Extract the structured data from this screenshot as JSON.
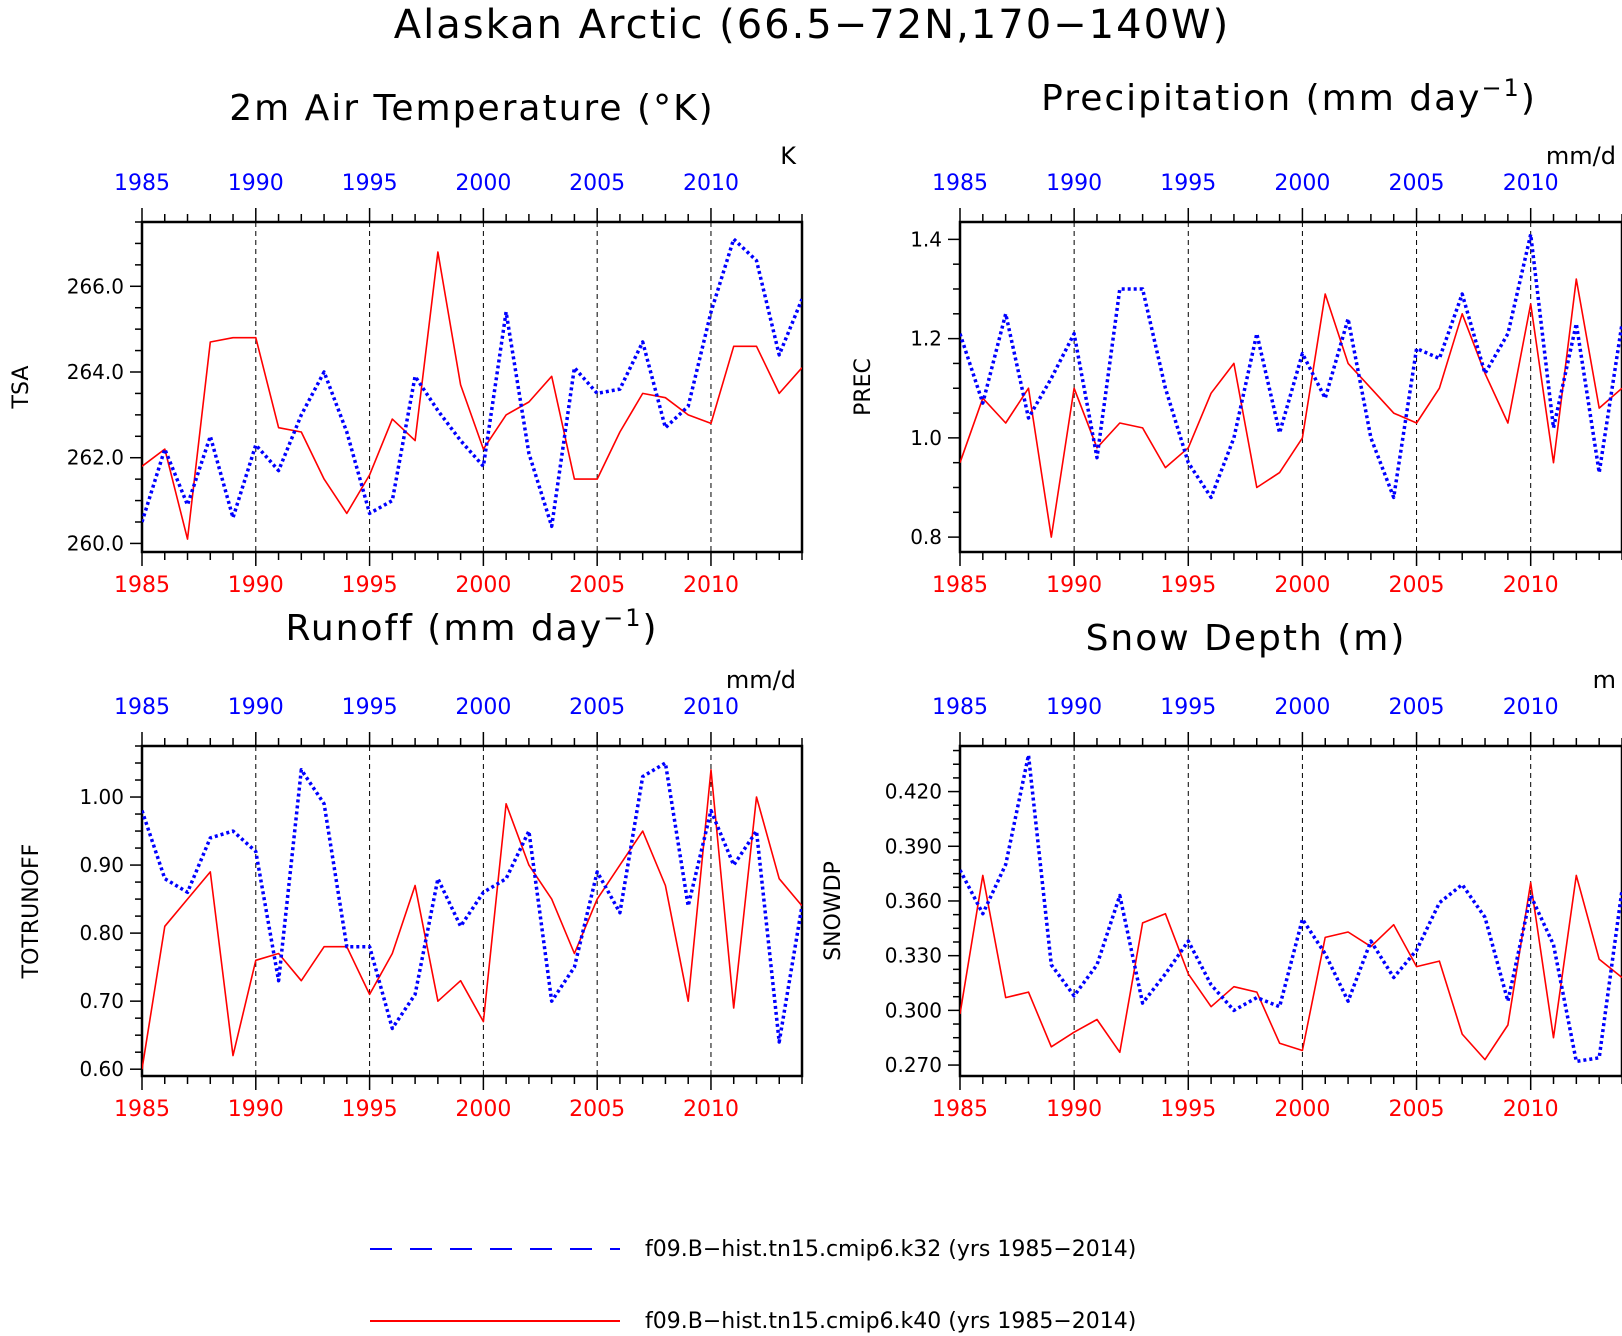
{
  "title": "Alaskan Arctic (66.5−72N,170−140W)",
  "colors": {
    "series_k32": "#0000ff",
    "series_k40": "#ff0000",
    "axes": "#000000"
  },
  "legend": {
    "k32": "f09.B−hist.tn15.cmip6.k32 (yrs 1985−2014)",
    "k40": "f09.B−hist.tn15.cmip6.k40 (yrs 1985−2014)"
  },
  "chart_data": [
    {
      "id": "tsa",
      "type": "line",
      "title": "2m Air Temperature (°K)",
      "ylabel": "TSA",
      "unit": "K",
      "xlim": [
        1985,
        2014
      ],
      "ylim": [
        259.8,
        267.5
      ],
      "yticks": [
        "260.0",
        "262.0",
        "264.0",
        "266.0"
      ],
      "xticks": [
        1985,
        1990,
        1995,
        2000,
        2005,
        2010
      ],
      "series": [
        {
          "name": "f09.B−hist.tn15.cmip6.k32",
          "color": "#0000ff",
          "style": "dotted",
          "x": [
            1985,
            1986,
            1987,
            1988,
            1989,
            1990,
            1991,
            1992,
            1993,
            1994,
            1995,
            1996,
            1997,
            1998,
            1999,
            2000,
            2001,
            2002,
            2003,
            2004,
            2005,
            2006,
            2007,
            2008,
            2009,
            2010,
            2011,
            2012,
            2013,
            2014
          ],
          "values": [
            260.5,
            262.2,
            260.9,
            262.5,
            260.6,
            262.3,
            261.7,
            263.0,
            264.0,
            262.6,
            260.7,
            261.0,
            263.9,
            263.1,
            262.4,
            261.8,
            265.4,
            262.1,
            260.4,
            264.1,
            263.5,
            263.6,
            264.7,
            262.7,
            263.2,
            265.4,
            267.1,
            266.6,
            264.4,
            265.7
          ]
        },
        {
          "name": "f09.B−hist.tn15.cmip6.k40",
          "color": "#ff0000",
          "style": "solid",
          "x": [
            1985,
            1986,
            1987,
            1988,
            1989,
            1990,
            1991,
            1992,
            1993,
            1994,
            1995,
            1996,
            1997,
            1998,
            1999,
            2000,
            2001,
            2002,
            2003,
            2004,
            2005,
            2006,
            2007,
            2008,
            2009,
            2010,
            2011,
            2012,
            2013,
            2014
          ],
          "values": [
            261.8,
            262.2,
            260.1,
            264.7,
            264.8,
            264.8,
            262.7,
            262.6,
            261.5,
            260.7,
            261.6,
            262.9,
            262.4,
            266.8,
            263.7,
            262.2,
            263.0,
            263.3,
            263.9,
            261.5,
            261.5,
            262.6,
            263.5,
            263.4,
            263.0,
            262.8,
            264.6,
            264.6,
            263.5,
            264.1
          ]
        }
      ]
    },
    {
      "id": "prec",
      "type": "line",
      "title": "Precipitation (mm day",
      "title_sup": "−1",
      "title_end": ")",
      "ylabel": "PREC",
      "unit": "mm/d",
      "xlim": [
        1985,
        2014
      ],
      "ylim": [
        0.77,
        1.435
      ],
      "yticks": [
        "0.8",
        "1.0",
        "1.2",
        "1.4"
      ],
      "xticks": [
        1985,
        1990,
        1995,
        2000,
        2005,
        2010
      ],
      "series": [
        {
          "name": "f09.B−hist.tn15.cmip6.k32",
          "color": "#0000ff",
          "style": "dotted",
          "x": [
            1985,
            1986,
            1987,
            1988,
            1989,
            1990,
            1991,
            1992,
            1993,
            1994,
            1995,
            1996,
            1997,
            1998,
            1999,
            2000,
            2001,
            2002,
            2003,
            2004,
            2005,
            2006,
            2007,
            2008,
            2009,
            2010,
            2011,
            2012,
            2013,
            2014
          ],
          "values": [
            1.21,
            1.07,
            1.25,
            1.04,
            1.12,
            1.21,
            0.96,
            1.3,
            1.3,
            1.1,
            0.95,
            0.88,
            1.0,
            1.21,
            1.01,
            1.17,
            1.08,
            1.24,
            1.0,
            0.88,
            1.18,
            1.16,
            1.29,
            1.13,
            1.21,
            1.41,
            1.02,
            1.23,
            0.93,
            1.23
          ]
        },
        {
          "name": "f09.B−hist.tn15.cmip6.k40",
          "color": "#ff0000",
          "style": "solid",
          "x": [
            1985,
            1986,
            1987,
            1988,
            1989,
            1990,
            1991,
            1992,
            1993,
            1994,
            1995,
            1996,
            1997,
            1998,
            1999,
            2000,
            2001,
            2002,
            2003,
            2004,
            2005,
            2006,
            2007,
            2008,
            2009,
            2010,
            2011,
            2012,
            2013,
            2014
          ],
          "values": [
            0.95,
            1.08,
            1.03,
            1.1,
            0.8,
            1.1,
            0.98,
            1.03,
            1.02,
            0.94,
            0.98,
            1.09,
            1.15,
            0.9,
            0.93,
            1.0,
            1.29,
            1.15,
            1.1,
            1.05,
            1.03,
            1.1,
            1.25,
            1.13,
            1.03,
            1.27,
            0.95,
            1.32,
            1.06,
            1.1
          ]
        }
      ]
    },
    {
      "id": "totrunoff",
      "type": "line",
      "title": "Runoff (mm day",
      "title_sup": "−1",
      "title_end": ")",
      "ylabel": "TOTRUNOFF",
      "unit": "mm/d",
      "xlim": [
        1985,
        2014
      ],
      "ylim": [
        0.59,
        1.075
      ],
      "yticks": [
        "0.60",
        "0.70",
        "0.80",
        "0.90",
        "1.00"
      ],
      "xticks": [
        1985,
        1990,
        1995,
        2000,
        2005,
        2010
      ],
      "series": [
        {
          "name": "f09.B−hist.tn15.cmip6.k32",
          "color": "#0000ff",
          "style": "dotted",
          "x": [
            1985,
            1986,
            1987,
            1988,
            1989,
            1990,
            1991,
            1992,
            1993,
            1994,
            1995,
            1996,
            1997,
            1998,
            1999,
            2000,
            2001,
            2002,
            2003,
            2004,
            2005,
            2006,
            2007,
            2008,
            2009,
            2010,
            2011,
            2012,
            2013,
            2014
          ],
          "values": [
            0.98,
            0.88,
            0.86,
            0.94,
            0.95,
            0.92,
            0.73,
            1.04,
            0.99,
            0.78,
            0.78,
            0.66,
            0.71,
            0.88,
            0.81,
            0.86,
            0.88,
            0.95,
            0.7,
            0.75,
            0.89,
            0.83,
            1.03,
            1.05,
            0.84,
            0.98,
            0.9,
            0.95,
            0.64,
            0.84
          ]
        },
        {
          "name": "f09.B−hist.tn15.cmip6.k40",
          "color": "#ff0000",
          "style": "solid",
          "x": [
            1985,
            1986,
            1987,
            1988,
            1989,
            1990,
            1991,
            1992,
            1993,
            1994,
            1995,
            1996,
            1997,
            1998,
            1999,
            2000,
            2001,
            2002,
            2003,
            2004,
            2005,
            2006,
            2007,
            2008,
            2009,
            2010,
            2011,
            2012,
            2013,
            2014
          ],
          "values": [
            0.6,
            0.81,
            0.85,
            0.89,
            0.62,
            0.76,
            0.77,
            0.73,
            0.78,
            0.78,
            0.71,
            0.77,
            0.87,
            0.7,
            0.73,
            0.67,
            0.99,
            0.9,
            0.85,
            0.77,
            0.85,
            0.9,
            0.95,
            0.87,
            0.7,
            1.04,
            0.69,
            1.0,
            0.88,
            0.84
          ]
        }
      ]
    },
    {
      "id": "snowdp",
      "type": "line",
      "title": "Snow Depth (m)",
      "ylabel": "SNOWDP",
      "unit": "m",
      "xlim": [
        1985,
        2014
      ],
      "ylim": [
        0.264,
        0.445
      ],
      "yticks": [
        "0.270",
        "0.300",
        "0.330",
        "0.360",
        "0.390",
        "0.420"
      ],
      "xticks": [
        1985,
        1990,
        1995,
        2000,
        2005,
        2010
      ],
      "series": [
        {
          "name": "f09.B−hist.tn15.cmip6.k32",
          "color": "#0000ff",
          "style": "dotted",
          "x": [
            1985,
            1986,
            1987,
            1988,
            1989,
            1990,
            1991,
            1992,
            1993,
            1994,
            1995,
            1996,
            1997,
            1998,
            1999,
            2000,
            2001,
            2002,
            2003,
            2004,
            2005,
            2006,
            2007,
            2008,
            2009,
            2010,
            2011,
            2012,
            2013,
            2014
          ],
          "values": [
            0.377,
            0.353,
            0.38,
            0.44,
            0.325,
            0.308,
            0.325,
            0.363,
            0.304,
            0.32,
            0.338,
            0.314,
            0.3,
            0.307,
            0.302,
            0.35,
            0.331,
            0.305,
            0.338,
            0.318,
            0.333,
            0.359,
            0.369,
            0.351,
            0.305,
            0.363,
            0.336,
            0.272,
            0.274,
            0.366
          ]
        },
        {
          "name": "f09.B−hist.tn15.cmip6.k40",
          "color": "#ff0000",
          "style": "solid",
          "x": [
            1985,
            1986,
            1987,
            1988,
            1989,
            1990,
            1991,
            1992,
            1993,
            1994,
            1995,
            1996,
            1997,
            1998,
            1999,
            2000,
            2001,
            2002,
            2003,
            2004,
            2005,
            2006,
            2007,
            2008,
            2009,
            2010,
            2011,
            2012,
            2013,
            2014
          ],
          "values": [
            0.298,
            0.374,
            0.307,
            0.31,
            0.28,
            0.288,
            0.295,
            0.277,
            0.348,
            0.353,
            0.32,
            0.302,
            0.313,
            0.31,
            0.282,
            0.278,
            0.34,
            0.343,
            0.335,
            0.347,
            0.324,
            0.327,
            0.287,
            0.273,
            0.292,
            0.37,
            0.285,
            0.374,
            0.328,
            0.318
          ]
        }
      ]
    }
  ]
}
